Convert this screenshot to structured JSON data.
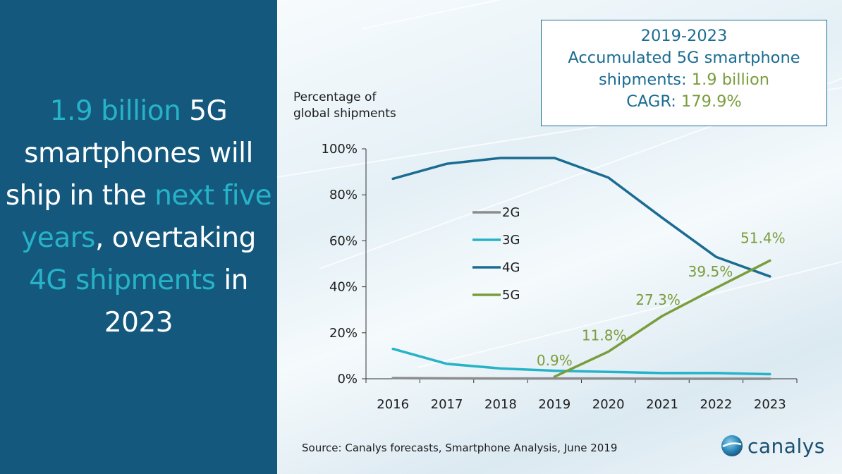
{
  "headline": {
    "p1": "1.9 billion",
    "p2": " 5G smartphones will ship in the ",
    "p3": "next five years",
    "p4": ", overtaking ",
    "p5": "4G shipments",
    "p6": " in 2023"
  },
  "callout": {
    "line1": "2019-2023",
    "line2": "Accumulated 5G smartphone",
    "line3a": "shipments: ",
    "line3b": "1.9 billion",
    "line4a": "CAGR: ",
    "line4b": "179.9%"
  },
  "ylabel_line1": "Percentage of",
  "ylabel_line2": "global shipments",
  "source": "Source: Canalys forecasts, Smartphone Analysis, June 2019",
  "logo_text": "canalys",
  "colors": {
    "panel": "#14587e",
    "highlight": "#27b3c7",
    "g2": "#8c8c8c",
    "g3": "#27b3c7",
    "g4": "#1a6c92",
    "g5": "#7a9d3c"
  },
  "chart_data": {
    "type": "line",
    "x": [
      "2016",
      "2017",
      "2018",
      "2019",
      "2020",
      "2021",
      "2022",
      "2023"
    ],
    "ylim": [
      0,
      100
    ],
    "yticks": [
      "0%",
      "20%",
      "40%",
      "60%",
      "80%",
      "100%"
    ],
    "legend_position": "center-left",
    "series": [
      {
        "name": "2G",
        "color": "#8c8c8c",
        "values": [
          0.3,
          0.2,
          0.1,
          0.1,
          0.1,
          0.0,
          0.0,
          0.0
        ]
      },
      {
        "name": "3G",
        "color": "#27b3c7",
        "values": [
          13,
          6.5,
          4.5,
          3.5,
          3,
          2.5,
          2.5,
          2
        ]
      },
      {
        "name": "4G",
        "color": "#1a6c92",
        "values": [
          87,
          93.5,
          96,
          96,
          87.5,
          70,
          53,
          44.5
        ]
      },
      {
        "name": "5G",
        "color": "#7a9d3c",
        "values": [
          null,
          null,
          null,
          0.9,
          11.8,
          27.3,
          39.5,
          51.4
        ]
      }
    ],
    "data_labels": [
      {
        "x": "2019",
        "text": "0.9%"
      },
      {
        "x": "2020",
        "text": "11.8%"
      },
      {
        "x": "2021",
        "text": "27.3%"
      },
      {
        "x": "2022",
        "text": "39.5%"
      },
      {
        "x": "2023",
        "text": "51.4%"
      }
    ]
  }
}
